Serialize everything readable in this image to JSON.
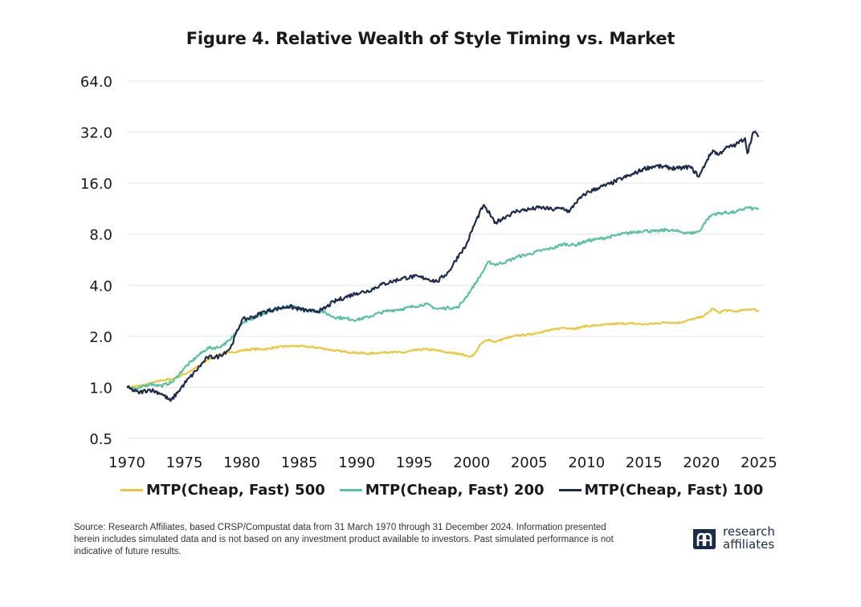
{
  "title": "Figure 4. Relative Wealth of Style Timing vs. Market",
  "source": "Source: Research Affiliates, based CRSP/Compustat data from 31 March 1970 through 31 December 2024. Information presented herein includes simulated data and is not based on any investment product available to investors. Past simulated performance is not indicative of future results.",
  "logo": {
    "line1": "research",
    "line2": "affiliates",
    "mark": "research-affiliates-logo-icon"
  },
  "colors": {
    "s500": "#E8C840",
    "s200": "#5DBFA3",
    "s100": "#1E2B4A",
    "grid": "#E6E6E6",
    "text": "#1a1a1a"
  },
  "chart_data": {
    "type": "line",
    "title": "Figure 4. Relative Wealth of Style Timing vs. Market",
    "xlabel": "",
    "ylabel": "",
    "y_scale": "log2",
    "ylim": [
      0.5,
      64
    ],
    "xlim": [
      1970,
      2025.5
    ],
    "y_ticks": [
      0.5,
      1.0,
      2.0,
      4.0,
      8.0,
      16.0,
      32.0,
      64.0
    ],
    "y_tick_labels": [
      "0.5",
      "1.0",
      "2.0",
      "4.0",
      "8.0",
      "16.0",
      "32.0",
      "64.0"
    ],
    "x_ticks": [
      1970,
      1975,
      1980,
      1985,
      1990,
      1995,
      2000,
      2005,
      2010,
      2015,
      2020,
      2025
    ],
    "x_tick_labels": [
      "1970",
      "1975",
      "1980",
      "1985",
      "1990",
      "1995",
      "2000",
      "2005",
      "2010",
      "2015",
      "2020",
      "2025"
    ],
    "grid": "horizontal",
    "legend": "bottom",
    "series": [
      {
        "name": "MTP(Cheap, Fast) 500",
        "color": "#E8C840",
        "x": [
          1970,
          1971,
          1972,
          1973,
          1974,
          1975,
          1976,
          1977,
          1978,
          1979,
          1980,
          1981,
          1982,
          1983,
          1984,
          1985,
          1986,
          1987,
          1988,
          1989,
          1990,
          1991,
          1992,
          1993,
          1994,
          1995,
          1996,
          1997,
          1998,
          1999,
          1999.7,
          2000.2,
          2000.8,
          2001.5,
          2002,
          2003,
          2004,
          2005,
          2006,
          2007,
          2008,
          2009,
          2010,
          2011,
          2012,
          2013,
          2014,
          2015,
          2016,
          2017,
          2018,
          2019,
          2020,
          2020.5,
          2021,
          2021.5,
          2022,
          2023,
          2024,
          2024.5,
          2025
        ],
        "y": [
          1.0,
          1.02,
          1.05,
          1.1,
          1.12,
          1.2,
          1.3,
          1.45,
          1.55,
          1.6,
          1.65,
          1.68,
          1.68,
          1.72,
          1.75,
          1.75,
          1.73,
          1.7,
          1.65,
          1.62,
          1.6,
          1.58,
          1.6,
          1.62,
          1.6,
          1.65,
          1.68,
          1.65,
          1.6,
          1.58,
          1.52,
          1.55,
          1.8,
          1.92,
          1.85,
          1.95,
          2.02,
          2.05,
          2.12,
          2.18,
          2.25,
          2.22,
          2.3,
          2.32,
          2.35,
          2.38,
          2.38,
          2.35,
          2.38,
          2.42,
          2.4,
          2.5,
          2.6,
          2.72,
          2.92,
          2.75,
          2.85,
          2.8,
          2.88,
          2.9,
          2.8
        ]
      },
      {
        "name": "MTP(Cheap, Fast) 200",
        "color": "#5DBFA3",
        "x": [
          1970,
          1971,
          1972,
          1973,
          1974,
          1975,
          1976,
          1977,
          1978,
          1979,
          1980,
          1981,
          1982,
          1983,
          1984,
          1985,
          1986,
          1987,
          1988,
          1989,
          1990,
          1991,
          1992,
          1993,
          1994,
          1995,
          1996,
          1997,
          1998,
          1998.8,
          1999.5,
          2000,
          2000.8,
          2001.5,
          2002,
          2003,
          2004,
          2005,
          2006,
          2007,
          2008,
          2009,
          2010,
          2011,
          2012,
          2013,
          2014,
          2015,
          2016,
          2017,
          2018,
          2019,
          2019.8,
          2020.5,
          2021,
          2022,
          2023,
          2024,
          2024.5,
          2025
        ],
        "y": [
          1.0,
          0.98,
          1.05,
          1.02,
          1.08,
          1.3,
          1.5,
          1.7,
          1.72,
          1.9,
          2.4,
          2.55,
          2.7,
          2.9,
          3.0,
          2.95,
          2.85,
          2.8,
          2.6,
          2.55,
          2.5,
          2.6,
          2.75,
          2.85,
          2.9,
          3.0,
          3.1,
          2.9,
          2.95,
          2.95,
          3.4,
          3.8,
          4.6,
          5.5,
          5.3,
          5.5,
          5.9,
          6.1,
          6.4,
          6.6,
          7.0,
          6.9,
          7.3,
          7.5,
          7.7,
          8.0,
          8.2,
          8.4,
          8.3,
          8.5,
          8.3,
          8.1,
          8.3,
          9.8,
          10.5,
          10.7,
          10.8,
          11.5,
          11.3,
          11.4
        ]
      },
      {
        "name": "MTP(Cheap, Fast) 100",
        "color": "#1E2B4A",
        "x": [
          1970,
          1971,
          1972,
          1973,
          1973.8,
          1974.5,
          1975,
          1976,
          1977,
          1978,
          1979,
          1980,
          1981,
          1982,
          1983,
          1984,
          1985,
          1986,
          1987,
          1988,
          1989,
          1990,
          1991,
          1992,
          1993,
          1994,
          1995,
          1996,
          1997,
          1998,
          1999,
          1999.5,
          2000.2,
          2001,
          2001.6,
          2002,
          2003,
          2004,
          2005,
          2006,
          2007,
          2008,
          2008.5,
          2009,
          2010,
          2011,
          2012,
          2013,
          2014,
          2015,
          2016,
          2017,
          2018,
          2019,
          2019.8,
          2020.5,
          2021,
          2021.5,
          2022,
          2023,
          2023.8,
          2024,
          2024.5,
          2025
        ],
        "y": [
          1.0,
          0.93,
          0.97,
          0.92,
          0.83,
          0.95,
          1.05,
          1.25,
          1.5,
          1.52,
          1.7,
          2.5,
          2.6,
          2.8,
          2.9,
          3.0,
          2.9,
          2.8,
          2.85,
          3.2,
          3.4,
          3.6,
          3.7,
          4.0,
          4.2,
          4.4,
          4.5,
          4.4,
          4.2,
          4.8,
          6.2,
          6.8,
          9.0,
          11.8,
          10.5,
          9.3,
          10.2,
          11.0,
          11.2,
          11.5,
          11.2,
          11.4,
          10.8,
          12.2,
          14.0,
          15.0,
          15.8,
          17.0,
          18.0,
          19.5,
          20.2,
          19.8,
          19.5,
          20.0,
          17.5,
          22.0,
          25.0,
          23.5,
          25.5,
          27.0,
          29.5,
          24.0,
          32.0,
          30.5
        ]
      }
    ]
  }
}
